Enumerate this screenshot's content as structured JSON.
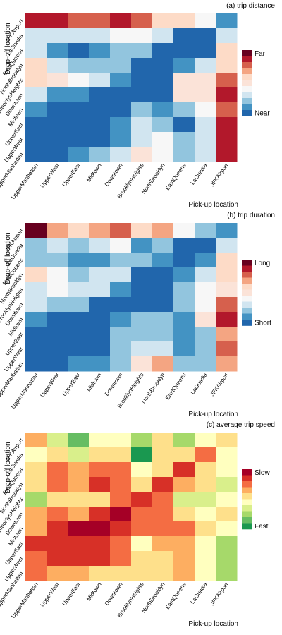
{
  "chart_data": [
    {
      "type": "heatmap",
      "title": "(a) trip distance",
      "xlabel": "Pick-up location",
      "ylabel": "Drop-off location",
      "x_categories": [
        "UpperManhattan",
        "UpperWest",
        "UpperEast",
        "Midtown",
        "Downtown",
        "BrooklynHeights",
        "NorthBrooklyn",
        "EastQueens",
        "LaGuadia",
        "JFKAirport"
      ],
      "y_categories_top_to_bottom": [
        "JFKAirport",
        "LaGuadia",
        "EastQueens",
        "NorthBrooklyn",
        "BrooklynHeights",
        "Downtown",
        "Midtown",
        "UpperEast",
        "UpperWest",
        "UpperManhattan"
      ],
      "legend_high": "Far",
      "legend_low": "Near",
      "levels": 10,
      "values": [
        [
          9,
          9,
          8,
          8,
          9,
          8,
          6,
          6,
          4,
          1
        ],
        [
          3,
          3,
          3,
          3,
          4,
          4,
          3,
          0,
          0,
          3
        ],
        [
          3,
          1,
          0,
          1,
          2,
          2,
          0,
          0,
          0,
          6
        ],
        [
          6,
          3,
          2,
          2,
          2,
          0,
          0,
          1,
          3,
          6
        ],
        [
          6,
          5,
          4,
          3,
          1,
          0,
          0,
          5,
          5,
          8
        ],
        [
          3,
          1,
          1,
          0,
          0,
          0,
          0,
          5,
          5,
          9
        ],
        [
          1,
          0,
          0,
          0,
          0,
          2,
          1,
          2,
          4,
          8
        ],
        [
          0,
          0,
          0,
          0,
          1,
          3,
          2,
          0,
          3,
          9
        ],
        [
          0,
          0,
          0,
          0,
          1,
          3,
          4,
          2,
          3,
          9
        ],
        [
          0,
          0,
          1,
          2,
          3,
          5,
          4,
          2,
          3,
          9
        ]
      ],
      "palette": [
        "#2166ac",
        "#4393c3",
        "#92c5de",
        "#d1e5f0",
        "#f7f7f7",
        "#fbe3d8",
        "#fddbc7",
        "#f4a582",
        "#d6604d",
        "#b2182b",
        "#67001f"
      ]
    },
    {
      "type": "heatmap",
      "title": "(b) trip duration",
      "xlabel": "Pick-up location",
      "ylabel": "Drop-off location",
      "x_categories": [
        "UpperManhattan",
        "UpperWest",
        "UpperEast",
        "Midtown",
        "Downtown",
        "BrooklynHeights",
        "NorthBrooklyn",
        "EastQueens",
        "LaGuadia",
        "JFKAirport"
      ],
      "y_categories_top_to_bottom": [
        "JFKAirport",
        "LaGuadia",
        "EastQueens",
        "NorthBrooklyn",
        "BrooklynHeights",
        "Downtown",
        "Midtown",
        "UpperEast",
        "UpperWest",
        "UpperManhattan"
      ],
      "legend_high": "Long",
      "legend_low": "Short",
      "levels": 10,
      "values": [
        [
          10,
          7,
          6,
          7,
          8,
          6,
          7,
          4,
          2,
          1
        ],
        [
          2,
          3,
          2,
          3,
          4,
          1,
          2,
          0,
          0,
          3
        ],
        [
          2,
          2,
          1,
          1,
          2,
          2,
          1,
          0,
          1,
          6
        ],
        [
          6,
          4,
          2,
          3,
          3,
          0,
          0,
          1,
          3,
          6
        ],
        [
          3,
          4,
          3,
          3,
          1,
          0,
          0,
          2,
          4,
          5
        ],
        [
          3,
          2,
          2,
          0,
          0,
          0,
          0,
          2,
          4,
          8
        ],
        [
          1,
          0,
          0,
          0,
          1,
          2,
          2,
          1,
          5,
          9
        ],
        [
          0,
          0,
          0,
          0,
          2,
          2,
          2,
          1,
          2,
          7
        ],
        [
          0,
          0,
          0,
          0,
          2,
          3,
          3,
          1,
          2,
          8
        ],
        [
          0,
          0,
          1,
          1,
          2,
          5,
          7,
          2,
          2,
          7
        ]
      ],
      "palette": [
        "#2166ac",
        "#4393c3",
        "#92c5de",
        "#d1e5f0",
        "#f7f7f7",
        "#fbe3d8",
        "#fddbc7",
        "#f4a582",
        "#d6604d",
        "#b2182b",
        "#67001f"
      ]
    },
    {
      "type": "heatmap",
      "title": "(c) average trip speed",
      "xlabel": "Pick-up location",
      "ylabel": "Drop-off location",
      "x_categories": [
        "UpperManhattan",
        "UpperWest",
        "UpperEast",
        "Midtown",
        "Downtown",
        "BrooklynHeights",
        "NorthBrooklyn",
        "EastQueens",
        "LaGuadia",
        "JFKAirport"
      ],
      "y_categories_top_to_bottom": [
        "JFKAirport",
        "LaGuadia",
        "EastQueens",
        "NorthBrooklyn",
        "BrooklynHeights",
        "Downtown",
        "Midtown",
        "UpperEast",
        "UpperWest",
        "UpperManhattan"
      ],
      "legend_high": "Slow",
      "legend_low": "Fast",
      "levels": 10,
      "values": [
        [
          6,
          3,
          1,
          4,
          4,
          2,
          5,
          2,
          4,
          5
        ],
        [
          4,
          5,
          3,
          5,
          5,
          0,
          5,
          5,
          7,
          4
        ],
        [
          5,
          7,
          6,
          7,
          7,
          4,
          5,
          8,
          5,
          4
        ],
        [
          5,
          7,
          6,
          8,
          7,
          5,
          8,
          6,
          5,
          3
        ],
        [
          2,
          5,
          5,
          5,
          7,
          8,
          7,
          3,
          3,
          4
        ],
        [
          6,
          7,
          6,
          8,
          9,
          7,
          7,
          5,
          4,
          5
        ],
        [
          6,
          8,
          9,
          9,
          8,
          7,
          7,
          7,
          5,
          4
        ],
        [
          8,
          8,
          8,
          8,
          7,
          4,
          6,
          6,
          4,
          2
        ],
        [
          7,
          8,
          8,
          8,
          7,
          5,
          5,
          6,
          4,
          2
        ],
        [
          7,
          6,
          6,
          5,
          5,
          5,
          5,
          6,
          4,
          2
        ]
      ],
      "palette": [
        "#1a9850",
        "#66bd63",
        "#a6d96a",
        "#d9ef8b",
        "#ffffbf",
        "#fee08b",
        "#fdae61",
        "#f46d43",
        "#d73027",
        "#a50026"
      ]
    }
  ]
}
